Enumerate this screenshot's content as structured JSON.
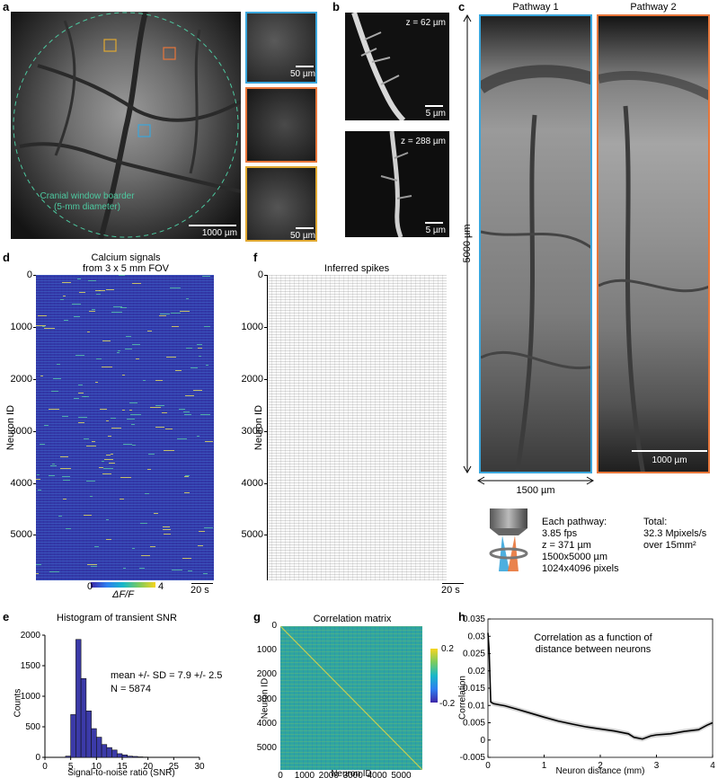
{
  "panel_labels": {
    "a": "a",
    "b": "b",
    "c": "c",
    "d": "d",
    "e": "e",
    "f": "f",
    "g": "g",
    "h": "h"
  },
  "a": {
    "window_label_line1": "Cranial window boarder",
    "window_label_line2": "(5-mm diameter)",
    "scale_main": "1000 µm",
    "scale_inset": "50 µm",
    "colors": {
      "window": "#4dc9a0",
      "blue": "#3aa6dc",
      "orange": "#e8763a",
      "yellow": "#e0a831"
    }
  },
  "b": {
    "z1": "z = 62 µm",
    "z2": "z = 288 µm",
    "scale": "5 µm"
  },
  "c": {
    "pathway1": "Pathway 1",
    "pathway2": "Pathway 2",
    "height_label": "5000 µm",
    "width_label": "1500 µm",
    "scale": "1000 µm",
    "each_title": "Each pathway:",
    "each_fps": "3.85 fps",
    "each_z": "z = 371 µm",
    "each_size": "1500x5000 µm",
    "each_pixels": "1024x4096 pixels",
    "total_title": "Total:",
    "total_rate": "32.3 Mpixels/s",
    "total_area": "over 15mm²"
  },
  "d": {
    "title1": "Calcium signals",
    "title2": "from 3 x 5 mm FOV",
    "ylabel": "Neuron ID",
    "yticks": [
      "0",
      "1000",
      "2000",
      "3000",
      "4000",
      "5000"
    ],
    "cbar_min": "0",
    "cbar_max": "4",
    "cbar_label": "ΔF/F",
    "time_scale": "20 s"
  },
  "f": {
    "title": "Inferred spikes",
    "ylabel": "Neuron ID",
    "yticks": [
      "0",
      "1000",
      "2000",
      "3000",
      "4000",
      "5000"
    ],
    "time_scale": "20 s"
  },
  "chart_data": [
    {
      "type": "bar",
      "title": "Histogram of transient SNR",
      "xlabel": "Signal-to-noise ratio (SNR)",
      "ylabel": "Counts",
      "xlim": [
        0,
        30
      ],
      "ylim": [
        0,
        2000
      ],
      "xticks": [
        "0",
        "5",
        "10",
        "15",
        "20",
        "25",
        "30"
      ],
      "yticks": [
        "0",
        "500",
        "1000",
        "1500",
        "2000"
      ],
      "bin_width": 1,
      "bins": [
        4,
        5,
        6,
        7,
        8,
        9,
        10,
        11,
        12,
        13,
        14,
        15,
        16,
        17,
        18,
        19
      ],
      "values": [
        20,
        700,
        1930,
        1290,
        760,
        470,
        330,
        210,
        160,
        120,
        60,
        40,
        20,
        15,
        8,
        5
      ],
      "annotation1": "mean +/- SD = 7.9 +/- 2.5",
      "annotation2": "N = 5874",
      "bar_color": "#3b3aa8"
    },
    {
      "type": "heatmap",
      "title": "Correlation matrix",
      "xlabel": "Neuron ID",
      "ylabel": "Neuron ID",
      "xticks": [
        "0",
        "1000",
        "2000",
        "3000",
        "4000",
        "5000"
      ],
      "yticks": [
        "0",
        "1000",
        "2000",
        "3000",
        "4000",
        "5000"
      ],
      "cbar_ticks": [
        "0.2",
        "-0.2"
      ],
      "clim": [
        -0.2,
        0.2
      ]
    },
    {
      "type": "line",
      "title": "Correlation as a function of",
      "subtitle": "distance between neurons",
      "xlabel": "Neuron distance (mm)",
      "ylabel": "Correlation",
      "xlim": [
        0,
        4
      ],
      "ylim": [
        -0.005,
        0.035
      ],
      "xticks": [
        "0",
        "1",
        "2",
        "3",
        "4"
      ],
      "yticks": [
        "0.035",
        "0.03",
        "0.025",
        "0.02",
        "0.015",
        "0.01",
        "0.005",
        "0",
        "-0.005"
      ],
      "x": [
        0,
        0.02,
        0.05,
        0.1,
        0.2,
        0.3,
        0.5,
        0.75,
        1.0,
        1.25,
        1.5,
        1.75,
        2.0,
        2.25,
        2.5,
        2.6,
        2.75,
        2.9,
        3.0,
        3.25,
        3.5,
        3.75,
        3.9,
        4.0
      ],
      "y": [
        0.031,
        0.026,
        0.011,
        0.0105,
        0.0102,
        0.0099,
        0.009,
        0.0078,
        0.0066,
        0.0055,
        0.0046,
        0.0038,
        0.0032,
        0.0026,
        0.0018,
        0.0008,
        0.0003,
        0.0012,
        0.0015,
        0.0018,
        0.0025,
        0.003,
        0.0043,
        0.005
      ]
    }
  ]
}
